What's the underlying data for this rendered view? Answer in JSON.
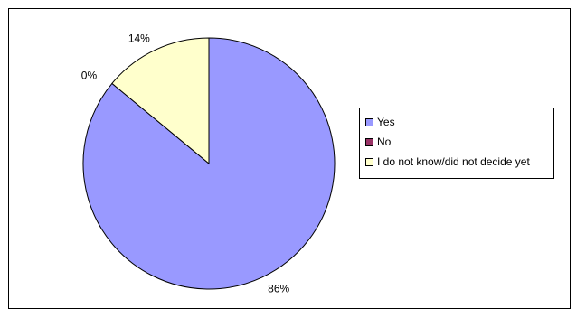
{
  "chart_data": {
    "type": "pie",
    "categories": [
      "Yes",
      "No",
      "I do not know/did not decide yet"
    ],
    "values": [
      86,
      0,
      14
    ],
    "data_labels": [
      "86%",
      "0%",
      "14%"
    ],
    "colors": [
      "#9999FF",
      "#993366",
      "#FFFFCC"
    ],
    "legend_position": "right",
    "title": ""
  },
  "legend": {
    "items": [
      {
        "label": "Yes",
        "color": "#9999FF"
      },
      {
        "label": "No",
        "color": "#993366"
      },
      {
        "label": "I do not know/did not decide yet",
        "color": "#FFFFCC"
      }
    ]
  }
}
